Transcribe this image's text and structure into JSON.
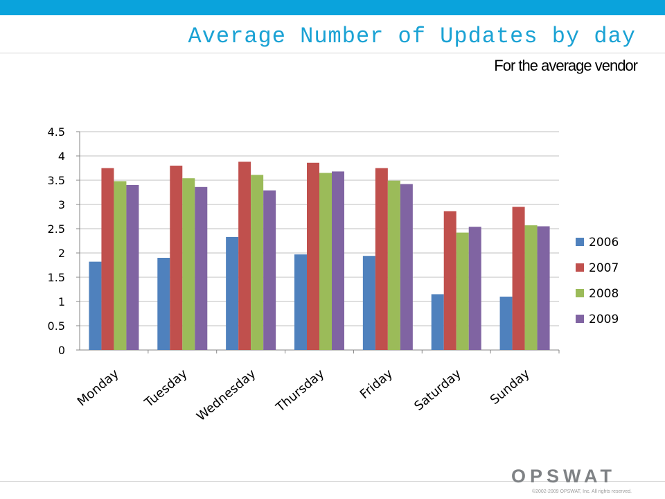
{
  "slide": {
    "title": "Average Number of Updates by day",
    "subtitle": "For the average vendor",
    "copyright": "©2002-2009 OPSWAT, Inc. All rights reserved."
  },
  "logo": {
    "text": "OPSWAT",
    "color": "#7f8285"
  },
  "colors": {
    "top_bar": "#0aa3dc",
    "title": "#1aa2d4"
  },
  "chart_data": {
    "type": "bar",
    "categories": [
      "Monday",
      "Tuesday",
      "Wednesday",
      "Thursday",
      "Friday",
      "Saturday",
      "Sunday"
    ],
    "series": [
      {
        "name": "2006",
        "color": "#4f81bd",
        "values": [
          1.82,
          1.9,
          2.33,
          1.97,
          1.94,
          1.15,
          1.1
        ]
      },
      {
        "name": "2007",
        "color": "#c0504d",
        "values": [
          3.75,
          3.8,
          3.88,
          3.86,
          3.75,
          2.86,
          2.95
        ]
      },
      {
        "name": "2008",
        "color": "#9bbb59",
        "values": [
          3.48,
          3.54,
          3.61,
          3.65,
          3.49,
          2.42,
          2.57
        ]
      },
      {
        "name": "2009",
        "color": "#8064a2",
        "values": [
          3.4,
          3.36,
          3.29,
          3.68,
          3.42,
          2.54,
          2.55
        ]
      }
    ],
    "ylim": [
      0,
      4.5
    ],
    "yticks": [
      "0",
      "0.5",
      "1",
      "1.5",
      "2",
      "2.5",
      "3",
      "3.5",
      "4",
      "4.5"
    ],
    "grid": true,
    "legend": "right"
  }
}
